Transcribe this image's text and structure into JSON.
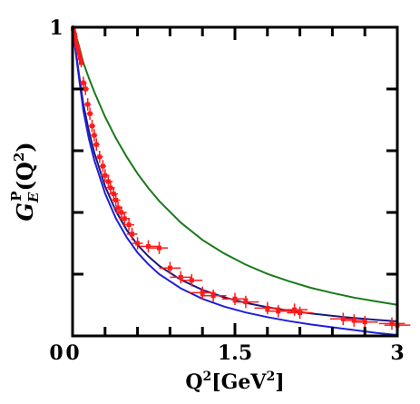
{
  "chart_data": {
    "type": "line",
    "xlabel": {
      "base": "Q",
      "sup": "2",
      "rest": "[GeV",
      "sup2": "2",
      "end": "]"
    },
    "ylabel": {
      "base": "G",
      "sub": "E",
      "sup": "P",
      "arg_open": "(Q",
      "arg_sup": "2",
      "arg_close": ")"
    },
    "xlim": [
      0,
      3
    ],
    "ylim": [
      0,
      1
    ],
    "x_ticks": [
      0,
      0.3,
      0.6,
      0.9,
      1.2,
      1.5,
      1.8,
      2.1,
      2.4,
      2.7,
      3.0
    ],
    "x_tick_labels": [
      {
        "value": 0,
        "label": "0"
      },
      {
        "value": 1.5,
        "label": "1.5"
      },
      {
        "value": 3,
        "label": "3"
      }
    ],
    "y_ticks": [
      0,
      0.2,
      0.4,
      0.6,
      0.8,
      1.0
    ],
    "y_tick_labels": [
      {
        "value": 0,
        "label": "0"
      },
      {
        "value": 1,
        "label": "1"
      }
    ],
    "grid": false,
    "series": [
      {
        "color": "#1a7a1a",
        "x": [
          0,
          0.05,
          0.1,
          0.15,
          0.2,
          0.3,
          0.4,
          0.5,
          0.6,
          0.7,
          0.8,
          1.0,
          1.2,
          1.4,
          1.6,
          1.8,
          2.0,
          2.2,
          2.4,
          2.6,
          2.8,
          3.0
        ],
        "y": [
          1.0,
          0.951,
          0.885,
          0.836,
          0.791,
          0.71,
          0.641,
          0.58,
          0.526,
          0.479,
          0.437,
          0.367,
          0.311,
          0.267,
          0.231,
          0.201,
          0.177,
          0.156,
          0.139,
          0.124,
          0.112,
          0.101
        ]
      },
      {
        "color": "#1a1a80",
        "x": [
          0,
          0.05,
          0.1,
          0.15,
          0.2,
          0.3,
          0.4,
          0.5,
          0.6,
          0.7,
          0.8,
          1.0,
          1.2,
          1.4,
          1.6,
          1.8,
          2.0,
          2.2,
          2.4,
          2.6,
          2.8,
          3.0
        ],
        "y": [
          1.0,
          0.87,
          0.75,
          0.665,
          0.594,
          0.485,
          0.405,
          0.343,
          0.295,
          0.258,
          0.227,
          0.182,
          0.149,
          0.125,
          0.107,
          0.093,
          0.082,
          0.073,
          0.065,
          0.058,
          0.052,
          0.047
        ]
      },
      {
        "color": "#1f1fd8",
        "x": [
          0,
          0.05,
          0.1,
          0.15,
          0.2,
          0.3,
          0.4,
          0.5,
          0.6,
          0.7,
          0.8,
          1.0,
          1.2,
          1.4,
          1.6,
          1.8,
          2.0,
          2.2,
          2.4,
          2.6,
          2.8,
          3.0
        ],
        "y": [
          1.0,
          0.86,
          0.73,
          0.64,
          0.57,
          0.462,
          0.381,
          0.319,
          0.27,
          0.232,
          0.2,
          0.154,
          0.12,
          0.095,
          0.076,
          0.061,
          0.048,
          0.037,
          0.028,
          0.019,
          0.01,
          0.003
        ]
      }
    ],
    "data_points": {
      "color": "#ff1a1a",
      "points": [
        {
          "x": 0.005,
          "y": 0.995,
          "xerr": 0.02,
          "yerr": 0.012
        },
        {
          "x": 0.01,
          "y": 0.99,
          "xerr": 0.02,
          "yerr": 0.012
        },
        {
          "x": 0.015,
          "y": 0.98,
          "xerr": 0.02,
          "yerr": 0.012
        },
        {
          "x": 0.02,
          "y": 0.975,
          "xerr": 0.02,
          "yerr": 0.012
        },
        {
          "x": 0.025,
          "y": 0.965,
          "xerr": 0.02,
          "yerr": 0.012
        },
        {
          "x": 0.03,
          "y": 0.955,
          "xerr": 0.02,
          "yerr": 0.012
        },
        {
          "x": 0.04,
          "y": 0.94,
          "xerr": 0.02,
          "yerr": 0.015
        },
        {
          "x": 0.05,
          "y": 0.93,
          "xerr": 0.02,
          "yerr": 0.015
        },
        {
          "x": 0.06,
          "y": 0.915,
          "xerr": 0.02,
          "yerr": 0.015
        },
        {
          "x": 0.07,
          "y": 0.9,
          "xerr": 0.02,
          "yerr": 0.015
        },
        {
          "x": 0.08,
          "y": 0.885,
          "xerr": 0.02,
          "yerr": 0.015
        },
        {
          "x": 0.1,
          "y": 0.82,
          "xerr": 0.03,
          "yerr": 0.02
        },
        {
          "x": 0.12,
          "y": 0.8,
          "xerr": 0.03,
          "yerr": 0.02
        },
        {
          "x": 0.14,
          "y": 0.75,
          "xerr": 0.03,
          "yerr": 0.02
        },
        {
          "x": 0.16,
          "y": 0.72,
          "xerr": 0.03,
          "yerr": 0.02
        },
        {
          "x": 0.18,
          "y": 0.68,
          "xerr": 0.03,
          "yerr": 0.02
        },
        {
          "x": 0.2,
          "y": 0.65,
          "xerr": 0.03,
          "yerr": 0.02
        },
        {
          "x": 0.22,
          "y": 0.62,
          "xerr": 0.03,
          "yerr": 0.02
        },
        {
          "x": 0.25,
          "y": 0.58,
          "xerr": 0.03,
          "yerr": 0.02
        },
        {
          "x": 0.28,
          "y": 0.55,
          "xerr": 0.03,
          "yerr": 0.02
        },
        {
          "x": 0.3,
          "y": 0.52,
          "xerr": 0.04,
          "yerr": 0.02
        },
        {
          "x": 0.33,
          "y": 0.5,
          "xerr": 0.04,
          "yerr": 0.02
        },
        {
          "x": 0.35,
          "y": 0.48,
          "xerr": 0.04,
          "yerr": 0.02
        },
        {
          "x": 0.38,
          "y": 0.46,
          "xerr": 0.04,
          "yerr": 0.02
        },
        {
          "x": 0.4,
          "y": 0.44,
          "xerr": 0.04,
          "yerr": 0.02
        },
        {
          "x": 0.42,
          "y": 0.415,
          "xerr": 0.04,
          "yerr": 0.02
        },
        {
          "x": 0.45,
          "y": 0.4,
          "xerr": 0.05,
          "yerr": 0.02
        },
        {
          "x": 0.48,
          "y": 0.38,
          "xerr": 0.05,
          "yerr": 0.02
        },
        {
          "x": 0.52,
          "y": 0.36,
          "xerr": 0.05,
          "yerr": 0.02
        },
        {
          "x": 0.55,
          "y": 0.33,
          "xerr": 0.05,
          "yerr": 0.02
        },
        {
          "x": 0.6,
          "y": 0.3,
          "xerr": 0.05,
          "yerr": 0.02
        },
        {
          "x": 0.7,
          "y": 0.29,
          "xerr": 0.08,
          "yerr": 0.02
        },
        {
          "x": 0.8,
          "y": 0.285,
          "xerr": 0.08,
          "yerr": 0.02
        },
        {
          "x": 0.9,
          "y": 0.22,
          "xerr": 0.1,
          "yerr": 0.02
        },
        {
          "x": 1.0,
          "y": 0.19,
          "xerr": 0.1,
          "yerr": 0.02
        },
        {
          "x": 1.1,
          "y": 0.18,
          "xerr": 0.1,
          "yerr": 0.02
        },
        {
          "x": 1.2,
          "y": 0.14,
          "xerr": 0.12,
          "yerr": 0.02
        },
        {
          "x": 1.3,
          "y": 0.13,
          "xerr": 0.12,
          "yerr": 0.02
        },
        {
          "x": 1.5,
          "y": 0.12,
          "xerr": 0.12,
          "yerr": 0.02
        },
        {
          "x": 1.6,
          "y": 0.11,
          "xerr": 0.12,
          "yerr": 0.02
        },
        {
          "x": 1.8,
          "y": 0.09,
          "xerr": 0.12,
          "yerr": 0.02
        },
        {
          "x": 1.9,
          "y": 0.08,
          "xerr": 0.12,
          "yerr": 0.02
        },
        {
          "x": 2.05,
          "y": 0.085,
          "xerr": 0.12,
          "yerr": 0.02
        },
        {
          "x": 2.1,
          "y": 0.075,
          "xerr": 0.12,
          "yerr": 0.02
        },
        {
          "x": 2.5,
          "y": 0.055,
          "xerr": 0.12,
          "yerr": 0.02
        },
        {
          "x": 2.6,
          "y": 0.05,
          "xerr": 0.12,
          "yerr": 0.02
        },
        {
          "x": 2.7,
          "y": 0.045,
          "xerr": 0.12,
          "yerr": 0.02
        },
        {
          "x": 2.95,
          "y": 0.04,
          "xerr": 0.12,
          "yerr": 0.02
        },
        {
          "x": 3.0,
          "y": 0.035,
          "xerr": 0.12,
          "yerr": 0.02
        }
      ]
    }
  }
}
